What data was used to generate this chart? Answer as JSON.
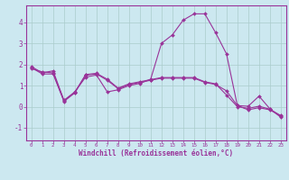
{
  "xlabel": "Windchill (Refroidissement éolien,°C)",
  "bg_color": "#cce8f0",
  "line_color": "#993399",
  "grid_color": "#aacccc",
  "text_color": "#993399",
  "xlim": [
    -0.5,
    23.5
  ],
  "ylim": [
    -1.6,
    4.8
  ],
  "xticks": [
    0,
    1,
    2,
    3,
    4,
    5,
    6,
    7,
    8,
    9,
    10,
    11,
    12,
    13,
    14,
    15,
    16,
    17,
    18,
    19,
    20,
    21,
    22,
    23
  ],
  "yticks": [
    -1,
    0,
    1,
    2,
    3,
    4
  ],
  "curve1_x": [
    0,
    1,
    2,
    3,
    4,
    5,
    6,
    7,
    8,
    9,
    10,
    11,
    12,
    13,
    14,
    15,
    16,
    17,
    18,
    19,
    20,
    21,
    22,
    23
  ],
  "curve1_y": [
    1.9,
    1.6,
    1.7,
    0.3,
    0.7,
    1.4,
    1.5,
    0.7,
    0.8,
    1.0,
    1.1,
    1.3,
    3.0,
    3.4,
    4.1,
    4.4,
    4.4,
    3.5,
    2.5,
    0.05,
    0.02,
    0.5,
    -0.1,
    -0.5
  ],
  "curve2_x": [
    0,
    1,
    2,
    3,
    4,
    5,
    6,
    7,
    8,
    9,
    10,
    11,
    12,
    13,
    14,
    15,
    16,
    17,
    18,
    19,
    20,
    21,
    22,
    23
  ],
  "curve2_y": [
    1.85,
    1.55,
    1.55,
    0.25,
    0.65,
    1.5,
    1.55,
    1.25,
    0.85,
    1.05,
    1.15,
    1.25,
    1.35,
    1.35,
    1.35,
    1.35,
    1.15,
    1.05,
    0.75,
    0.05,
    -0.15,
    -0.05,
    -0.15,
    -0.45
  ],
  "curve3_x": [
    0,
    1,
    2,
    3,
    4,
    5,
    6,
    7,
    8,
    9,
    10,
    11,
    12,
    13,
    14,
    15,
    16,
    17,
    18,
    19,
    20,
    21,
    22,
    23
  ],
  "curve3_y": [
    1.8,
    1.65,
    1.6,
    0.28,
    0.68,
    1.52,
    1.58,
    1.3,
    0.88,
    1.08,
    1.18,
    1.28,
    1.38,
    1.38,
    1.38,
    1.38,
    1.18,
    1.08,
    0.55,
    0.0,
    -0.08,
    0.02,
    -0.12,
    -0.42
  ]
}
